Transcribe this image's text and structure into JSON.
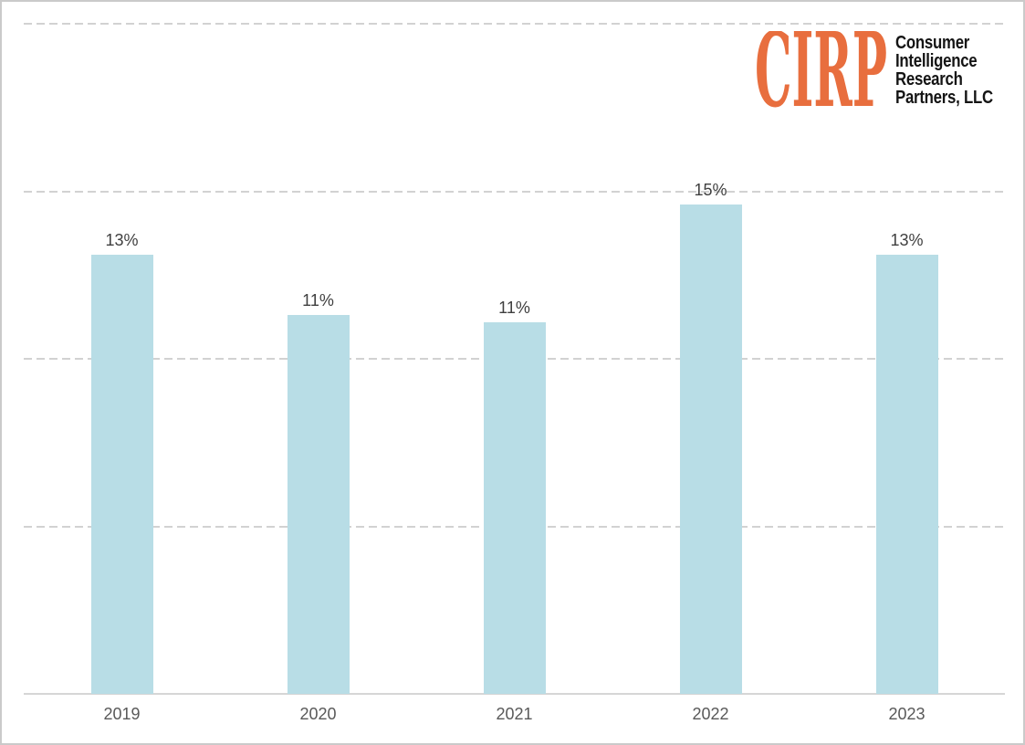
{
  "logo": {
    "acronym": "CIRP",
    "company_lines": [
      "Consumer",
      "Intelligence",
      "Research",
      "Partners, LLC"
    ],
    "accent_color": "#e86e3e",
    "text_color": "#151515"
  },
  "chart_data": {
    "type": "bar",
    "title": "",
    "xlabel": "",
    "ylabel": "",
    "categories": [
      "2019",
      "2020",
      "2021",
      "2022",
      "2023"
    ],
    "values": [
      13,
      11,
      11,
      15,
      13
    ],
    "data_labels": [
      "13%",
      "11%",
      "11%",
      "15%",
      "13%"
    ],
    "values_precise_estimated": [
      13.1,
      11.3,
      11.1,
      14.6,
      13.1
    ],
    "ylim": [
      0,
      20
    ],
    "gridline_values": [
      5,
      10,
      15,
      20
    ],
    "grid": "horizontal-dashed",
    "legend": "none",
    "bar_color": "#b8dde6",
    "data_label_color": "#3f3f3f",
    "axis_label_color": "#595959",
    "gridline_color": "#d2d2d2",
    "axis_line_color": "#d6d6d6"
  }
}
